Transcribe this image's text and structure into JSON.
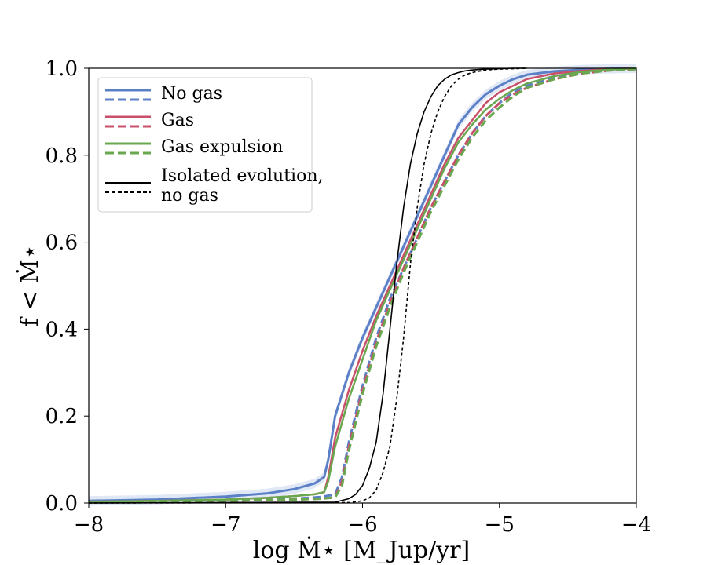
{
  "chart_data": {
    "type": "line",
    "title": "",
    "xlabel": "log Ṁ⋆ [M_Jup/yr]",
    "ylabel": "f < Ṁ⋆",
    "xlim": [
      -8,
      -4
    ],
    "ylim": [
      0,
      1
    ],
    "xticks": [
      -8,
      -7,
      -6,
      -5,
      -4
    ],
    "xtick_labels": [
      "−8",
      "−7",
      "−6",
      "−5",
      "−4"
    ],
    "yticks": [
      0,
      0.2,
      0.4,
      0.6,
      0.8,
      1.0
    ],
    "ytick_labels": [
      "0.0",
      "0.2",
      "0.4",
      "0.6",
      "0.8",
      "1.0"
    ],
    "legend_position": "top-left",
    "legend": [
      {
        "label": "No gas",
        "color": "#5b80c8",
        "styles": [
          "solid",
          "dashed"
        ]
      },
      {
        "label": "Gas",
        "color": "#c8506a",
        "styles": [
          "solid",
          "dashed"
        ]
      },
      {
        "label": "Gas expulsion",
        "color": "#6aa84f",
        "styles": [
          "solid",
          "dashed"
        ]
      },
      {
        "label": "Isolated evolution,",
        "label2": "no gas",
        "color": "#000000",
        "styles": [
          "solid",
          "dashed"
        ]
      }
    ],
    "series": [
      {
        "name": "No gas (solid)",
        "color": "#5b80c8",
        "dash": "solid",
        "width": 3,
        "band": true,
        "x": [
          -8,
          -7.5,
          -7,
          -6.7,
          -6.5,
          -6.35,
          -6.28,
          -6.25,
          -6.2,
          -6.1,
          -6.0,
          -5.9,
          -5.8,
          -5.7,
          -5.6,
          -5.5,
          -5.4,
          -5.3,
          -5.2,
          -5.1,
          -5.0,
          -4.9,
          -4.8,
          -4.6,
          -4.4,
          -4.2,
          -4.0
        ],
        "y": [
          0.005,
          0.008,
          0.015,
          0.022,
          0.032,
          0.045,
          0.06,
          0.1,
          0.2,
          0.3,
          0.38,
          0.45,
          0.52,
          0.59,
          0.66,
          0.73,
          0.8,
          0.87,
          0.91,
          0.94,
          0.96,
          0.975,
          0.985,
          0.993,
          0.997,
          0.999,
          1.0
        ]
      },
      {
        "name": "No gas (dashed)",
        "color": "#5b80c8",
        "dash": "dashed",
        "width": 3,
        "x": [
          -8,
          -7.5,
          -7,
          -6.7,
          -6.5,
          -6.3,
          -6.2,
          -6.15,
          -6.1,
          -6.0,
          -5.9,
          -5.8,
          -5.7,
          -5.6,
          -5.5,
          -5.4,
          -5.3,
          -5.2,
          -5.1,
          -5.0,
          -4.9,
          -4.8,
          -4.6,
          -4.4,
          -4.2,
          -4.0
        ],
        "y": [
          0.003,
          0.004,
          0.006,
          0.008,
          0.01,
          0.014,
          0.02,
          0.06,
          0.14,
          0.27,
          0.38,
          0.47,
          0.54,
          0.61,
          0.68,
          0.74,
          0.8,
          0.85,
          0.89,
          0.92,
          0.945,
          0.96,
          0.98,
          0.99,
          0.996,
          0.999
        ]
      },
      {
        "name": "Gas (solid)",
        "color": "#c8506a",
        "dash": "solid",
        "width": 2.5,
        "x": [
          -8,
          -7.5,
          -7,
          -6.7,
          -6.5,
          -6.35,
          -6.28,
          -6.25,
          -6.2,
          -6.1,
          -6.0,
          -5.9,
          -5.8,
          -5.7,
          -5.6,
          -5.5,
          -5.4,
          -5.3,
          -5.2,
          -5.1,
          -5.0,
          -4.9,
          -4.8,
          -4.6,
          -4.4,
          -4.2,
          -4.0
        ],
        "y": [
          0.003,
          0.005,
          0.008,
          0.012,
          0.016,
          0.02,
          0.025,
          0.06,
          0.15,
          0.26,
          0.35,
          0.43,
          0.5,
          0.57,
          0.64,
          0.71,
          0.78,
          0.84,
          0.88,
          0.92,
          0.945,
          0.96,
          0.975,
          0.988,
          0.994,
          0.998,
          1.0
        ]
      },
      {
        "name": "Gas (dashed)",
        "color": "#c8506a",
        "dash": "dashed",
        "width": 3,
        "x": [
          -8,
          -7.5,
          -7,
          -6.7,
          -6.5,
          -6.3,
          -6.2,
          -6.15,
          -6.1,
          -6.0,
          -5.9,
          -5.8,
          -5.7,
          -5.6,
          -5.5,
          -5.4,
          -5.3,
          -5.2,
          -5.1,
          -5.0,
          -4.9,
          -4.8,
          -4.6,
          -4.4,
          -4.2,
          -4.0
        ],
        "y": [
          0.002,
          0.003,
          0.005,
          0.007,
          0.008,
          0.01,
          0.013,
          0.05,
          0.13,
          0.26,
          0.37,
          0.46,
          0.54,
          0.61,
          0.68,
          0.74,
          0.8,
          0.85,
          0.89,
          0.92,
          0.94,
          0.955,
          0.975,
          0.988,
          0.995,
          0.998
        ]
      },
      {
        "name": "Gas expulsion (solid)",
        "color": "#6aa84f",
        "dash": "solid",
        "width": 2.5,
        "x": [
          -8,
          -7.5,
          -7,
          -6.7,
          -6.5,
          -6.35,
          -6.28,
          -6.25,
          -6.2,
          -6.1,
          -6.0,
          -5.9,
          -5.8,
          -5.7,
          -5.6,
          -5.5,
          -5.4,
          -5.3,
          -5.2,
          -5.1,
          -5.0,
          -4.9,
          -4.8,
          -4.6,
          -4.4,
          -4.2,
          -4.0
        ],
        "y": [
          0.003,
          0.005,
          0.008,
          0.012,
          0.016,
          0.02,
          0.025,
          0.05,
          0.13,
          0.24,
          0.33,
          0.42,
          0.49,
          0.56,
          0.63,
          0.7,
          0.77,
          0.83,
          0.87,
          0.905,
          0.93,
          0.95,
          0.965,
          0.982,
          0.992,
          0.997,
          1.0
        ]
      },
      {
        "name": "Gas expulsion (dashed)",
        "color": "#6aa84f",
        "dash": "dashed",
        "width": 3,
        "x": [
          -8,
          -7.5,
          -7,
          -6.7,
          -6.5,
          -6.3,
          -6.2,
          -6.15,
          -6.1,
          -6.0,
          -5.9,
          -5.8,
          -5.7,
          -5.6,
          -5.5,
          -5.4,
          -5.3,
          -5.2,
          -5.1,
          -5.0,
          -4.9,
          -4.8,
          -4.6,
          -4.4,
          -4.2,
          -4.0
        ],
        "y": [
          0.002,
          0.003,
          0.005,
          0.007,
          0.008,
          0.01,
          0.013,
          0.04,
          0.12,
          0.25,
          0.36,
          0.45,
          0.53,
          0.6,
          0.67,
          0.73,
          0.79,
          0.84,
          0.88,
          0.91,
          0.935,
          0.955,
          0.975,
          0.988,
          0.995,
          0.998
        ]
      },
      {
        "name": "Isolated evolution, no gas (solid)",
        "color": "#000000",
        "dash": "solid",
        "width": 1.6,
        "x": [
          -8,
          -6.2,
          -6.1,
          -6.05,
          -6.0,
          -5.95,
          -5.9,
          -5.85,
          -5.8,
          -5.75,
          -5.7,
          -5.65,
          -5.6,
          -5.55,
          -5.5,
          -5.45,
          -5.4,
          -5.35,
          -5.3,
          -5.25,
          -5.2,
          -5.1,
          -5.0,
          -4.9,
          -4.8
        ],
        "y": [
          0.0,
          0.002,
          0.01,
          0.02,
          0.04,
          0.08,
          0.14,
          0.25,
          0.4,
          0.55,
          0.68,
          0.78,
          0.85,
          0.9,
          0.935,
          0.96,
          0.975,
          0.985,
          0.99,
          0.994,
          0.996,
          0.998,
          0.999,
          1.0,
          1.0
        ]
      },
      {
        "name": "Isolated evolution, no gas (dashed)",
        "color": "#000000",
        "dash": "dashed",
        "width": 1.6,
        "x": [
          -8,
          -6.1,
          -6.0,
          -5.95,
          -5.9,
          -5.85,
          -5.8,
          -5.75,
          -5.7,
          -5.65,
          -5.6,
          -5.55,
          -5.5,
          -5.45,
          -5.4,
          -5.35,
          -5.3,
          -5.25,
          -5.2,
          -5.1,
          -5.0,
          -4.9,
          -4.8
        ],
        "y": [
          0.0,
          0.001,
          0.005,
          0.012,
          0.03,
          0.07,
          0.13,
          0.24,
          0.38,
          0.55,
          0.68,
          0.78,
          0.85,
          0.9,
          0.935,
          0.96,
          0.975,
          0.985,
          0.99,
          0.996,
          0.998,
          0.999,
          1.0
        ]
      }
    ]
  }
}
